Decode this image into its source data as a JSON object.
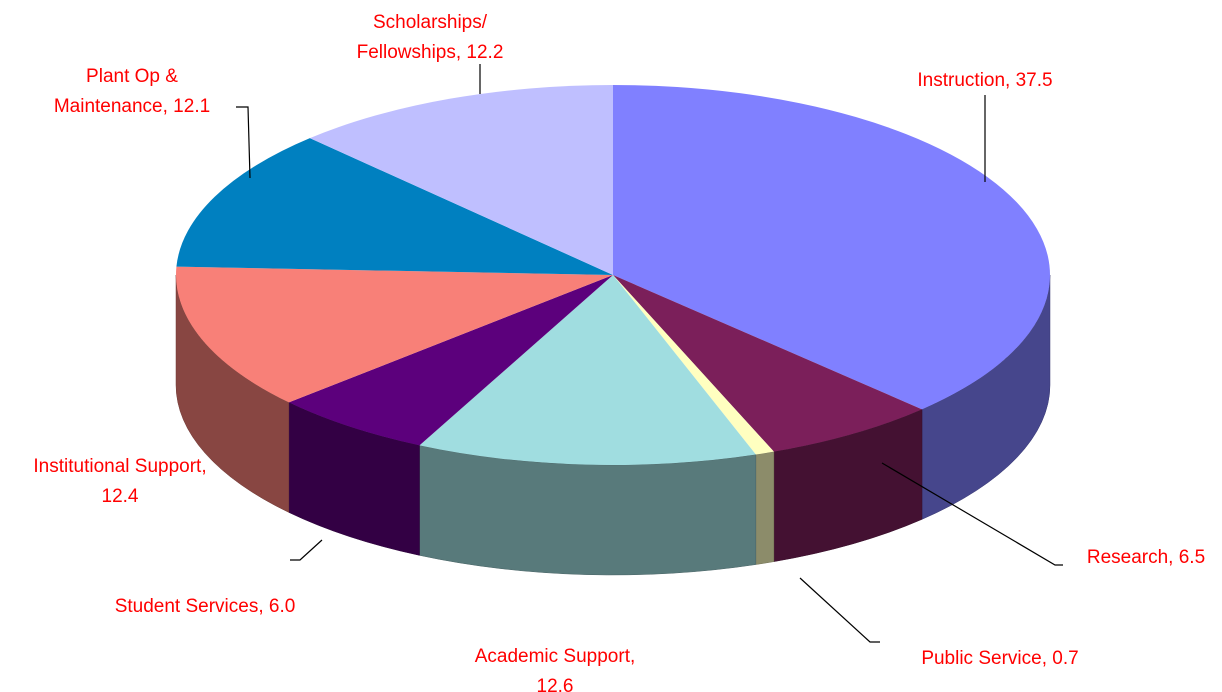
{
  "chart_data": {
    "type": "pie3d",
    "values": [
      37.5,
      6.5,
      0.7,
      12.6,
      6.0,
      12.4,
      12.1,
      12.2
    ],
    "value_labels": [
      [
        "Instruction, 37.5"
      ],
      [
        "Research, 6.5"
      ],
      [
        "Public Service, 0.7"
      ],
      [
        "Academic Support,",
        "12.6"
      ],
      [
        "Student Services, 6.0"
      ],
      [
        "Institutional Support,",
        "12.4"
      ],
      [
        "Plant Op &",
        "Maintenance, 12.1"
      ],
      [
        "Scholarships/",
        "Fellowships, 12.2"
      ]
    ],
    "colors": [
      "#8080ff",
      "#7b1f5a",
      "#ffffc0",
      "#a0dde0",
      "#5c007c",
      "#f88078",
      "#0080c0",
      "#bfbfff"
    ],
    "label_color": "#ff0000"
  }
}
